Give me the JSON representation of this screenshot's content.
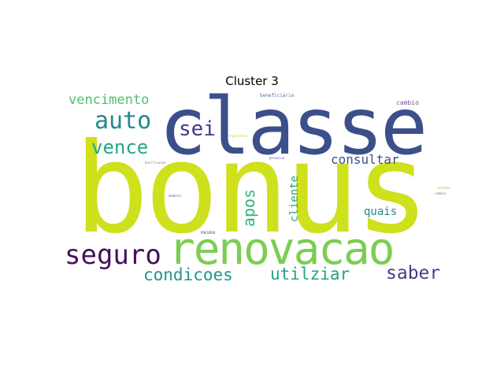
{
  "figure": {
    "title": "Cluster 3"
  },
  "words": [
    {
      "id": "bonus",
      "text": "bonus",
      "color": "#cfe01c"
    },
    {
      "id": "classe",
      "text": "classe",
      "color": "#3b4f8a"
    },
    {
      "id": "renovacao",
      "text": "renovacao",
      "color": "#7ccd52"
    },
    {
      "id": "seguro",
      "text": "seguro",
      "color": "#45115c"
    },
    {
      "id": "auto",
      "text": "auto",
      "color": "#23898e"
    },
    {
      "id": "vencimento",
      "text": "vencimento",
      "color": "#4cc26c"
    },
    {
      "id": "vence",
      "text": "vence",
      "color": "#20a686"
    },
    {
      "id": "sei",
      "text": "sei",
      "color": "#433a84"
    },
    {
      "id": "consultar",
      "text": "consultar",
      "color": "#3d4f8a"
    },
    {
      "id": "condicoes",
      "text": "condicoes",
      "color": "#26938a"
    },
    {
      "id": "utilziar",
      "text": "utilziar",
      "color": "#25a185"
    },
    {
      "id": "saber",
      "text": "saber",
      "color": "#453e88"
    },
    {
      "id": "apos",
      "text": "apos",
      "color": "#33b47a"
    },
    {
      "id": "cliente",
      "text": "cliente",
      "color": "#2aa37f"
    },
    {
      "id": "quais",
      "text": "quais",
      "color": "#25888e"
    },
    {
      "id": "cambio",
      "text": "cambio",
      "color": "#7a4e9a"
    },
    {
      "id": "beneficiario",
      "text": "beneficiario",
      "color": "#5a6aa0"
    },
    {
      "id": "mesma",
      "text": "mesma",
      "color": "#585e9a"
    },
    {
      "id": "tiny-1",
      "text": "pesquisa",
      "color": "#6b5aa6"
    },
    {
      "id": "tiny-2",
      "text": "bonificacao",
      "color": "#6a8a9a"
    },
    {
      "id": "tiny-3",
      "text": "seguradora",
      "color": "#c5d43a"
    },
    {
      "id": "tiny-4",
      "text": "cambio",
      "color": "#8a6aaa"
    },
    {
      "id": "tiny-5",
      "text": "membros",
      "color": "#5a6aa6"
    },
    {
      "id": "tiny-6",
      "text": "contato",
      "color": "#7ccd52"
    }
  ]
}
